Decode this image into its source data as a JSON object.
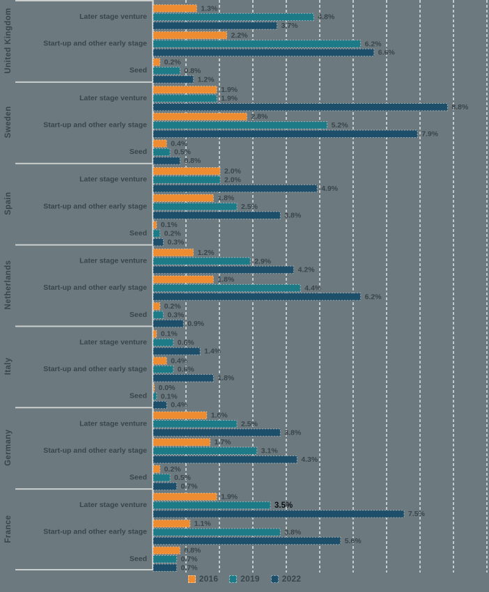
{
  "page": {
    "background": "#6C797E"
  },
  "chart_data": {
    "type": "bar",
    "orientation": "horizontal-grouped",
    "title": "",
    "value_unit": "%",
    "value_axis": {
      "min": 0,
      "max": 10,
      "gridline_step": 1,
      "grid_style": "dashed-vertical",
      "tick_labels_visible": false
    },
    "legend_position": "bottom-center",
    "series": [
      {
        "name": "2016",
        "color": "#ED8C30"
      },
      {
        "name": "2019",
        "color": "#1D7A87"
      },
      {
        "name": "2022",
        "color": "#1D4F6A"
      }
    ],
    "categories": [
      "Later stage venture",
      "Start-up and other early stage",
      "Seed"
    ],
    "groups": [
      {
        "name": "United Kingdom",
        "rows": [
          [
            1.3,
            4.8,
            3.7
          ],
          [
            2.2,
            6.2,
            6.6
          ],
          [
            0.2,
            0.8,
            1.2
          ]
        ]
      },
      {
        "name": "Sweden",
        "rows": [
          [
            1.9,
            1.9,
            8.8
          ],
          [
            2.8,
            5.2,
            7.9
          ],
          [
            0.4,
            0.5,
            0.8
          ]
        ]
      },
      {
        "name": "Spain",
        "rows": [
          [
            2.0,
            2.0,
            4.9
          ],
          [
            1.8,
            2.5,
            3.8
          ],
          [
            0.1,
            0.2,
            0.3
          ]
        ]
      },
      {
        "name": "Netherlands",
        "rows": [
          [
            1.2,
            2.9,
            4.2
          ],
          [
            1.8,
            4.4,
            6.2
          ],
          [
            0.2,
            0.3,
            0.9
          ]
        ]
      },
      {
        "name": "Italy",
        "rows": [
          [
            0.1,
            0.6,
            1.4
          ],
          [
            0.4,
            0.6,
            1.8
          ],
          [
            0.0,
            0.1,
            0.4
          ]
        ]
      },
      {
        "name": "Germany",
        "rows": [
          [
            1.6,
            2.5,
            3.8
          ],
          [
            1.7,
            3.1,
            4.3
          ],
          [
            0.2,
            0.5,
            0.7
          ]
        ]
      },
      {
        "name": "France",
        "rows": [
          [
            1.9,
            3.5,
            7.5
          ],
          [
            1.1,
            3.8,
            5.6
          ],
          [
            0.8,
            0.7,
            0.7
          ]
        ]
      }
    ],
    "emphasized_value": {
      "group": "France",
      "category": "Later stage venture",
      "series": "2019",
      "value": 3.5
    },
    "colors": {
      "background": "#6C797E",
      "gridline": "#C6CBCA",
      "separator": "#CBD0CF",
      "label_text": "#3A454A",
      "emphasized_text": "#0B1014"
    }
  }
}
